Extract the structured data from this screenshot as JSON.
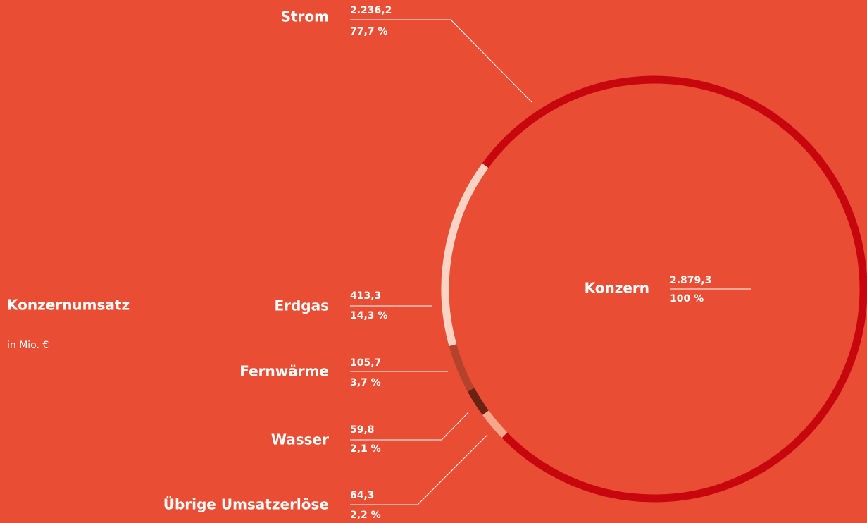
{
  "title": "Konzernumsatz",
  "subtitle": "in Mio. €",
  "chart_data": {
    "type": "donut",
    "total": {
      "name": "Konzern",
      "value": 2879.3,
      "value_label": "2.879,3",
      "percent": 100,
      "percent_label": "100 %"
    },
    "categories": [
      "Strom",
      "Erdgas",
      "Fernwärme",
      "Wasser",
      "Übrige Umsatzerlöse"
    ],
    "values": [
      2236.2,
      413.3,
      105.7,
      59.8,
      64.3
    ],
    "value_labels": [
      "2.236,2",
      "413,3",
      "105,7",
      "59,8",
      "64,3"
    ],
    "percents": [
      77.7,
      14.3,
      3.7,
      2.1,
      2.2
    ],
    "percent_labels": [
      "77,7 %",
      "14,3 %",
      "3,7 %",
      "2,1 %",
      "2,2 %"
    ],
    "colors": [
      "#c8060e",
      "#f9d4c5",
      "#b5422c",
      "#6a2212",
      "#f6a68b"
    ]
  }
}
